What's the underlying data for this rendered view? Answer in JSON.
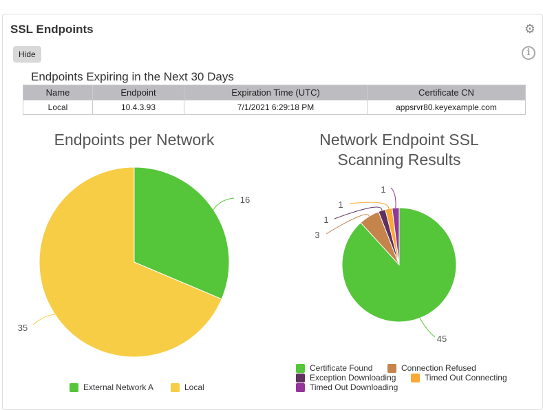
{
  "widget": {
    "title": "SSL Endpoints",
    "hide_label": "Hide",
    "settings_icon": "gear-icon",
    "info_icon": "info-icon"
  },
  "table": {
    "title": "Endpoints Expiring in the Next 30 Days",
    "columns": [
      "Name",
      "Endpoint",
      "Expiration Time (UTC)",
      "Certificate CN"
    ],
    "rows": [
      [
        "Local",
        "10.4.3.93",
        "7/1/2021 6:29:18 PM",
        "appsrvr80.keyexample.com"
      ]
    ]
  },
  "chart_data": [
    {
      "type": "pie",
      "title": "Endpoints per Network",
      "legend": "bottom",
      "slices": [
        {
          "label": "External Network A",
          "value": 16,
          "color": "#55c53a"
        },
        {
          "label": "Local",
          "value": 35,
          "color": "#f7cd45"
        }
      ]
    },
    {
      "type": "pie",
      "title": "Network Endpoint SSL Scanning Results",
      "legend": "bottom",
      "slices": [
        {
          "label": "Certificate Found",
          "value": 45,
          "color": "#55c53a"
        },
        {
          "label": "Connection Refused",
          "value": 3,
          "color": "#c5844b"
        },
        {
          "label": "Exception Downloading",
          "value": 1,
          "color": "#5f3060"
        },
        {
          "label": "Timed Out Connecting",
          "value": 1,
          "color": "#fba935"
        },
        {
          "label": "Timed Out Downloading",
          "value": 1,
          "color": "#93359a"
        }
      ]
    }
  ]
}
